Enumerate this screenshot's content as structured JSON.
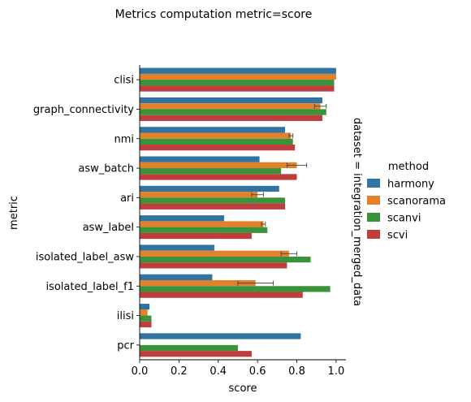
{
  "chart_data": {
    "type": "bar",
    "orientation": "horizontal",
    "title": "Metrics computation metric=score",
    "xlabel": "score",
    "ylabel": "metric",
    "facet_label": "dataset = integration_merged_data",
    "xlim": [
      0,
      1.05
    ],
    "xticks": [
      "0.0",
      "0.2",
      "0.4",
      "0.6",
      "0.8",
      "1.0"
    ],
    "grid": false,
    "legend": {
      "title": "method",
      "placement": "right"
    },
    "categories": [
      "clisi",
      "graph_connectivity",
      "nmi",
      "asw_batch",
      "ari",
      "asw_label",
      "isolated_label_asw",
      "isolated_label_f1",
      "ilisi",
      "pcr"
    ],
    "series": [
      {
        "name": "harmony",
        "color": "#3274a1",
        "values": [
          1.0,
          0.93,
          0.74,
          0.61,
          0.71,
          0.43,
          0.38,
          0.37,
          0.05,
          0.82
        ],
        "errors": [
          0,
          0,
          0,
          0,
          0,
          0,
          0,
          0,
          0,
          0
        ]
      },
      {
        "name": "scanorama",
        "color": "#e1812c",
        "values": [
          1.0,
          0.92,
          0.77,
          0.8,
          0.6,
          0.63,
          0.76,
          0.59,
          0.04,
          null
        ],
        "errors": [
          0,
          0.03,
          0.01,
          0.05,
          0.03,
          0.01,
          0.04,
          0.09,
          0,
          0
        ]
      },
      {
        "name": "scanvi",
        "color": "#3a923a",
        "values": [
          0.99,
          0.95,
          0.78,
          0.72,
          0.74,
          0.65,
          0.87,
          0.97,
          0.06,
          0.5
        ],
        "errors": [
          0,
          0,
          0,
          0,
          0,
          0,
          0,
          0,
          0,
          0
        ]
      },
      {
        "name": "scvi",
        "color": "#c03d3e",
        "values": [
          0.99,
          0.93,
          0.79,
          0.8,
          0.74,
          0.57,
          0.75,
          0.83,
          0.06,
          0.57
        ],
        "errors": [
          0,
          0,
          0,
          0,
          0,
          0,
          0,
          0,
          0,
          0
        ]
      }
    ]
  }
}
